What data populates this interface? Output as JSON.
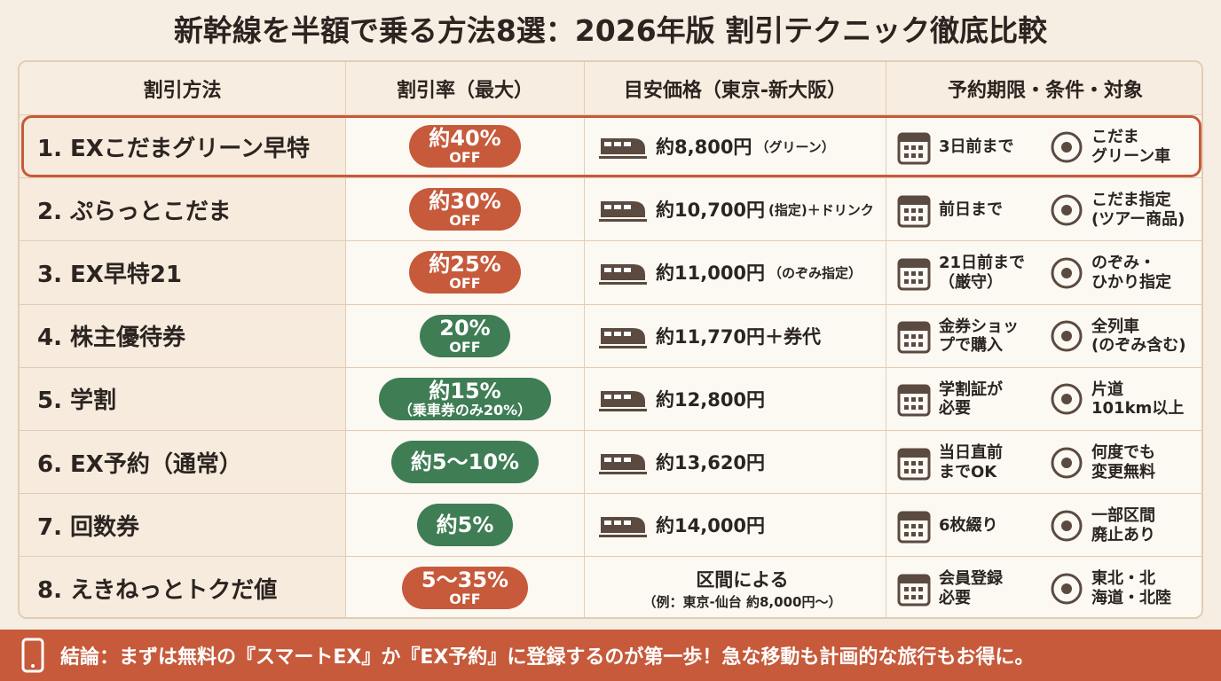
{
  "header": {
    "title": "新幹線を半額で乗る方法8選：2026年版 割引テクニック徹底比較"
  },
  "table": {
    "columns": [
      "割引方法",
      "割引率（最大）",
      "目安価格（東京-新大阪）",
      "予約期限・条件・対象"
    ],
    "rows": [
      {
        "method": "1. EXこだまグリーン早特",
        "rate": "約40%",
        "rate_sub": "OFF",
        "badge_color": "#c65a3b",
        "price": "約8,800円",
        "price_note": "（グリーン）",
        "cond1": "3日前まで",
        "cond2": "こだま\nグリーン車",
        "highlighted": true
      },
      {
        "method": "2. ぷらっとこだま",
        "rate": "約30%",
        "rate_sub": "OFF",
        "badge_color": "#c65a3b",
        "price": "約10,700円",
        "price_note": "(指定)＋ドリンク",
        "cond1": "前日まで",
        "cond2": "こだま指定\n(ツアー商品)"
      },
      {
        "method": "3. EX早特21",
        "rate": "約25%",
        "rate_sub": "OFF",
        "badge_color": "#c65a3b",
        "price": "約11,000円",
        "price_note": "（のぞみ指定）",
        "cond1": "21日前まで\n（厳守）",
        "cond2": "のぞみ・\nひかり指定"
      },
      {
        "method": "4. 株主優待券",
        "rate": "20%",
        "rate_sub": "OFF",
        "badge_color": "#3f7d55",
        "price": "約11,770円＋券代",
        "cond1": "金券ショッ\nプで購入",
        "cond2": "全列車\n(のぞみ含む)"
      },
      {
        "method": "5. 学割",
        "rate": "約15%",
        "rate_sub": "（乗車券のみ20%）",
        "badge_color": "#3f7d55",
        "price": "約12,800円",
        "cond1": "学割証が\n必要",
        "cond2": "片道\n101km以上"
      },
      {
        "method": "6. EX予約（通常）",
        "rate": "約5〜10%",
        "badge_color": "#3f7d55",
        "price": "約13,620円",
        "cond1": "当日直前\nまでOK",
        "cond2": "何度でも\n変更無料"
      },
      {
        "method": "7. 回数券",
        "rate": "約5%",
        "badge_color": "#3f7d55",
        "price": "約14,000円",
        "cond1": "6枚綴り",
        "cond2": "一部区間\n廃止あり"
      },
      {
        "method": "8. えきねっとトクだ値",
        "rate": "5〜35%",
        "rate_sub": "OFF",
        "badge_color": "#c65a3b",
        "price": "区間による",
        "price_note": "（例：東京-仙台 約8,000円〜）",
        "price_block": true,
        "cond1": "会員登録\n必要",
        "cond2": "東北・北\n海道・北陸"
      }
    ]
  },
  "footer": {
    "text": "結論：まずは無料の『スマートEX』か『EX予約』に登録するのが第一歩！急な移動も計画的な旅行もお得に。"
  }
}
